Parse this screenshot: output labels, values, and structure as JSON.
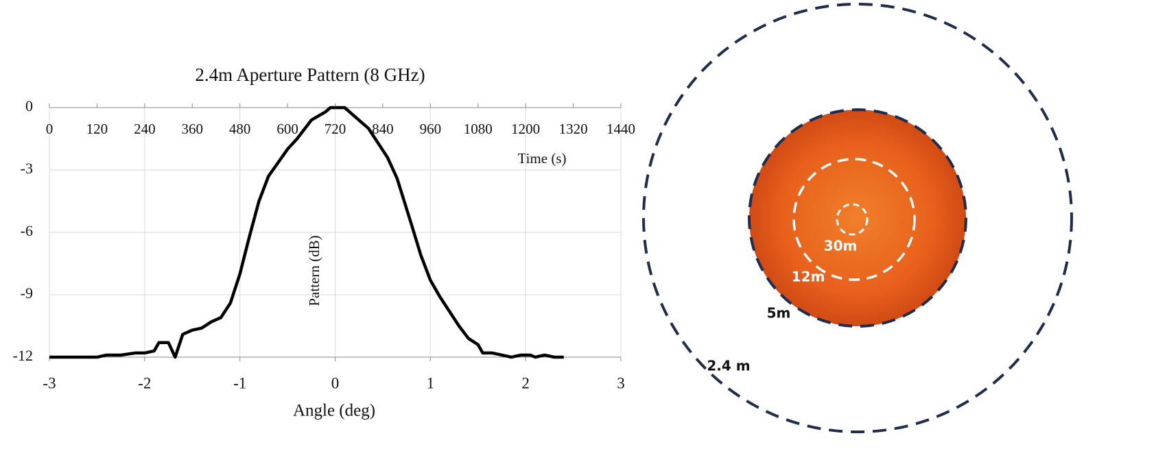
{
  "chart_data": {
    "type": "line",
    "title": "2.4m Aperture Pattern (8 GHz)",
    "xlabel": "Angle (deg)",
    "ylabel": "Pattern (dB)",
    "x2label": "Time (s)",
    "xlim": [
      -3,
      3
    ],
    "xticks": [
      -3,
      -2,
      -1,
      0,
      1,
      2,
      3
    ],
    "ylim": [
      -12,
      0
    ],
    "yticks": [
      0,
      -3,
      -6,
      -9,
      -12
    ],
    "x2lim": [
      0,
      1440
    ],
    "x2ticks": [
      0,
      120,
      240,
      360,
      480,
      600,
      720,
      840,
      960,
      1080,
      1200,
      1320,
      1440
    ],
    "grid": true,
    "x": [
      -3,
      -2.5,
      -2.4,
      -2.25,
      -2.1,
      -2.0,
      -1.9,
      -1.85,
      -1.75,
      -1.68,
      -1.6,
      -1.5,
      -1.4,
      -1.3,
      -1.2,
      -1.1,
      -1.0,
      -0.9,
      -0.8,
      -0.7,
      -0.5,
      -0.4,
      -0.25,
      -0.1,
      -0.05,
      0.05,
      0.1,
      0.2,
      0.35,
      0.45,
      0.55,
      0.65,
      0.8,
      0.9,
      1.0,
      1.1,
      1.2,
      1.3,
      1.4,
      1.5,
      1.55,
      1.65,
      1.75,
      1.85,
      1.95,
      2.05,
      2.1,
      2.2,
      2.3,
      2.4
    ],
    "series": [
      {
        "color": "#000000",
        "values": [
          -12,
          -12,
          -11.9,
          -11.9,
          -11.8,
          -11.8,
          -11.7,
          -11.3,
          -11.3,
          -12,
          -10.9,
          -10.7,
          -10.6,
          -10.3,
          -10.1,
          -9.4,
          -8.0,
          -6.2,
          -4.5,
          -3.3,
          -2.0,
          -1.5,
          -0.6,
          -0.2,
          0,
          0,
          0,
          -0.4,
          -1.0,
          -1.7,
          -2.4,
          -3.4,
          -5.6,
          -7.1,
          -8.3,
          -9.1,
          -9.8,
          -10.5,
          -11.1,
          -11.4,
          -11.8,
          -11.8,
          -11.9,
          -12,
          -11.9,
          -11.9,
          -12,
          -11.9,
          -12,
          -12
        ]
      }
    ]
  },
  "diagram": {
    "labels": [
      "30m",
      "12m",
      "5m",
      "2.4 m"
    ]
  }
}
